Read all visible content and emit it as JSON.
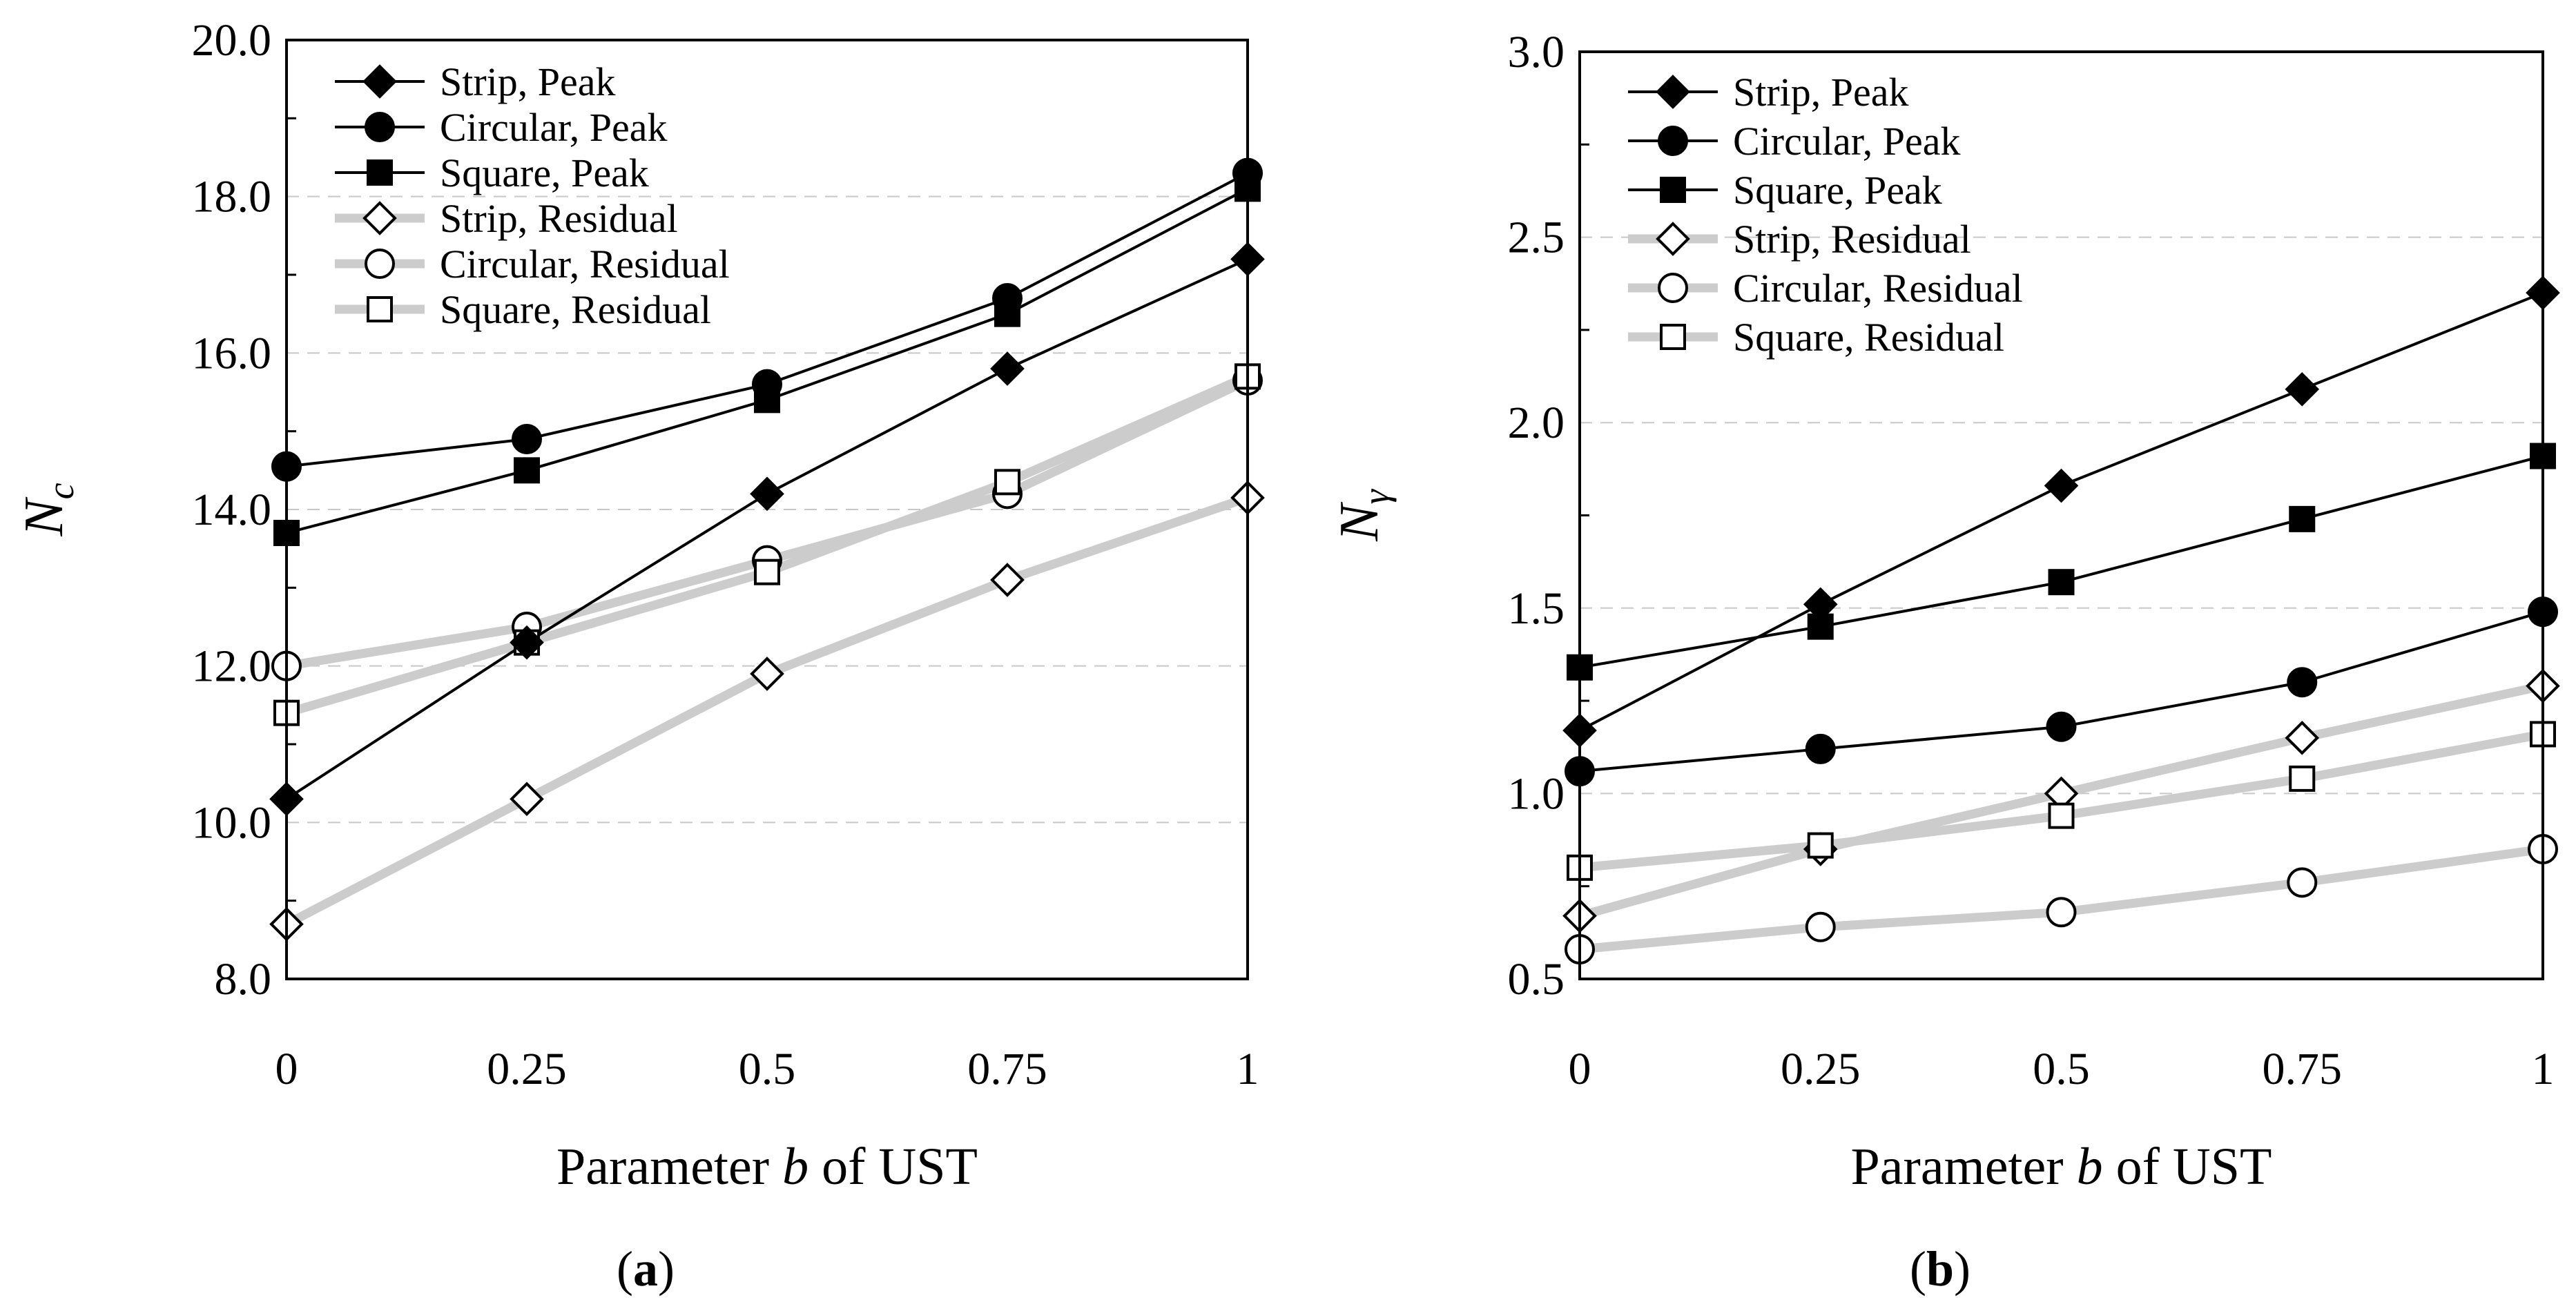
{
  "figure": {
    "panels": [
      "(a)",
      "(b)"
    ]
  },
  "chart_data": [
    {
      "type": "line",
      "panel_label": "(a)",
      "title": "",
      "xlabel": "Parameter b of UST",
      "ylabel": "Nc",
      "categories": [
        "0",
        "0.25",
        "0.5",
        "0.75",
        "1"
      ],
      "x": [
        0,
        0.25,
        0.5,
        0.75,
        1
      ],
      "ylim": [
        8.0,
        20.0
      ],
      "yticks": [
        "8.0",
        "10.0",
        "12.0",
        "14.0",
        "16.0",
        "18.0",
        "20.0"
      ],
      "grid": "dashed horizontal",
      "legend_position": "top-left",
      "series": [
        {
          "name": "Strip, Peak",
          "marker": "diamond",
          "style": "peak",
          "values": [
            10.3,
            12.3,
            14.2,
            15.8,
            17.2
          ]
        },
        {
          "name": "Circular, Peak",
          "marker": "circle",
          "style": "peak",
          "values": [
            14.55,
            14.9,
            15.6,
            16.7,
            18.3
          ]
        },
        {
          "name": "Square, Peak",
          "marker": "square",
          "style": "peak",
          "values": [
            13.7,
            14.5,
            15.4,
            16.5,
            18.1
          ]
        },
        {
          "name": "Strip, Residual",
          "marker": "diamond",
          "style": "residual",
          "values": [
            8.7,
            10.3,
            11.9,
            13.1,
            14.15
          ]
        },
        {
          "name": "Circular, Residual",
          "marker": "circle",
          "style": "residual",
          "values": [
            12.0,
            12.5,
            13.35,
            14.2,
            15.65
          ]
        },
        {
          "name": "Square, Residual",
          "marker": "square",
          "style": "residual",
          "values": [
            11.4,
            12.3,
            13.2,
            14.35,
            15.7
          ]
        }
      ]
    },
    {
      "type": "line",
      "panel_label": "(b)",
      "title": "",
      "xlabel": "Parameter b of UST",
      "ylabel": "Nγ",
      "categories": [
        "0",
        "0.25",
        "0.5",
        "0.75",
        "1"
      ],
      "x": [
        0,
        0.25,
        0.5,
        0.75,
        1
      ],
      "ylim": [
        0.5,
        3.0
      ],
      "yticks": [
        "0.5",
        "1.0",
        "1.5",
        "2.0",
        "2.5",
        "3.0"
      ],
      "grid": "dashed horizontal",
      "legend_position": "top-left",
      "series": [
        {
          "name": "Strip, Peak",
          "marker": "diamond",
          "style": "peak",
          "values": [
            1.17,
            1.51,
            1.83,
            2.09,
            2.35
          ]
        },
        {
          "name": "Circular, Peak",
          "marker": "circle",
          "style": "peak",
          "values": [
            1.06,
            1.12,
            1.18,
            1.3,
            1.49
          ]
        },
        {
          "name": "Square, Peak",
          "marker": "square",
          "style": "peak",
          "values": [
            1.34,
            1.45,
            1.57,
            1.74,
            1.91
          ]
        },
        {
          "name": "Strip, Residual",
          "marker": "diamond",
          "style": "residual",
          "values": [
            0.67,
            0.85,
            1.0,
            1.15,
            1.29
          ]
        },
        {
          "name": "Circular, Residual",
          "marker": "circle",
          "style": "residual",
          "values": [
            0.58,
            0.64,
            0.68,
            0.76,
            0.85
          ]
        },
        {
          "name": "Square, Residual",
          "marker": "square",
          "style": "residual",
          "values": [
            0.8,
            0.86,
            0.94,
            1.04,
            1.16
          ]
        }
      ]
    }
  ]
}
